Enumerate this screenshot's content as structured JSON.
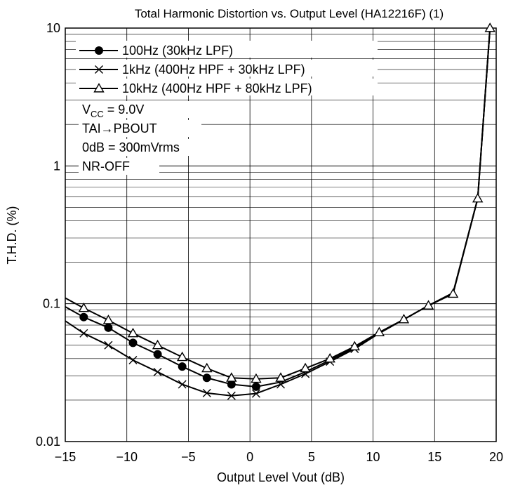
{
  "chart_data": {
    "type": "line",
    "title": "Total Harmonic Distortion vs. Output Level (HA12216F) (1)",
    "xlabel": "Output Level  Vout  (dB)",
    "ylabel": "T.H.D.  (%)",
    "xlim": [
      -15,
      20
    ],
    "ylim": [
      0.01,
      10
    ],
    "yscale": "log",
    "grid": true,
    "legend_position": "top-left",
    "xticks": [
      -15,
      -10,
      -5,
      0,
      5,
      10,
      15,
      20
    ],
    "xtick_labels": [
      "−15",
      "−10",
      "−5",
      "0",
      "5",
      "10",
      "15",
      "20"
    ],
    "yticks": [
      0.01,
      0.1,
      1,
      10
    ],
    "ytick_labels": [
      "0.01",
      "0.1",
      "1",
      "10"
    ],
    "series": [
      {
        "name": "100Hz (30kHz LPF)",
        "marker": "filled-circle",
        "line_x": [
          -15,
          -13.5,
          -11.5,
          -9.5,
          -7.5,
          -5.5,
          -3.5,
          -1.5,
          0.5,
          2.5,
          4.5,
          6.5,
          8.5,
          10.5,
          12.5,
          14.5,
          16.5,
          18.5,
          19.5
        ],
        "line_y": [
          0.095,
          0.08,
          0.067,
          0.052,
          0.043,
          0.035,
          0.029,
          0.026,
          0.025,
          0.027,
          0.032,
          0.039,
          0.048,
          0.061,
          0.077,
          0.097,
          0.12,
          0.58,
          10
        ],
        "marker_x": [
          -13.5,
          -11.5,
          -9.5,
          -7.5,
          -5.5,
          -3.5,
          -1.5,
          0.5
        ],
        "marker_y": [
          0.08,
          0.067,
          0.052,
          0.043,
          0.035,
          0.029,
          0.026,
          0.025
        ]
      },
      {
        "name": "1kHz (400Hz HPF + 30kHz LPF)",
        "marker": "cross",
        "line_x": [
          -15,
          -13.5,
          -11.5,
          -9.5,
          -7.5,
          -5.5,
          -3.5,
          -1.5,
          0.5,
          2.5,
          4.5,
          6.5,
          8.5,
          10.5,
          12.5,
          14.5,
          16.5,
          18.5,
          19.5
        ],
        "line_y": [
          0.075,
          0.061,
          0.05,
          0.039,
          0.032,
          0.026,
          0.0225,
          0.0215,
          0.0223,
          0.026,
          0.031,
          0.038,
          0.047,
          0.061,
          0.077,
          0.097,
          0.12,
          0.58,
          10
        ],
        "marker_x": [
          -13.5,
          -11.5,
          -9.5,
          -7.5,
          -5.5,
          -3.5,
          -1.5,
          0.5,
          2.5,
          4.5,
          6.5,
          8.5
        ],
        "marker_y": [
          0.061,
          0.05,
          0.039,
          0.032,
          0.026,
          0.0225,
          0.0215,
          0.0223,
          0.026,
          0.031,
          0.038,
          0.047
        ]
      },
      {
        "name": "10kHz (400Hz HPF + 80kHz LPF)",
        "marker": "open-triangle",
        "line_x": [
          -15,
          -13.5,
          -11.5,
          -9.5,
          -7.5,
          -5.5,
          -3.5,
          -1.5,
          0.5,
          2.5,
          4.5,
          6.5,
          8.5,
          10.5,
          12.5,
          14.5,
          16.5,
          18.5,
          19.5
        ],
        "line_y": [
          0.11,
          0.093,
          0.076,
          0.061,
          0.05,
          0.041,
          0.034,
          0.029,
          0.0285,
          0.029,
          0.034,
          0.04,
          0.049,
          0.062,
          0.077,
          0.097,
          0.118,
          0.58,
          10
        ],
        "marker_x": [
          -13.5,
          -11.5,
          -9.5,
          -7.5,
          -5.5,
          -3.5,
          -1.5,
          0.5,
          2.5,
          4.5,
          6.5,
          8.5,
          10.5,
          12.5,
          14.5,
          16.5,
          18.5,
          19.5
        ],
        "marker_y": [
          0.093,
          0.076,
          0.061,
          0.05,
          0.041,
          0.034,
          0.029,
          0.0285,
          0.029,
          0.034,
          0.04,
          0.049,
          0.062,
          0.077,
          0.097,
          0.118,
          0.58,
          10
        ]
      }
    ],
    "conditions": [
      {
        "main": "V",
        "sub": "CC",
        "rest": " = 9.0V"
      },
      {
        "main": "TAI→PBOUT"
      },
      {
        "main": "0dB = 300mVrms"
      },
      {
        "main": "NR-OFF"
      }
    ]
  }
}
